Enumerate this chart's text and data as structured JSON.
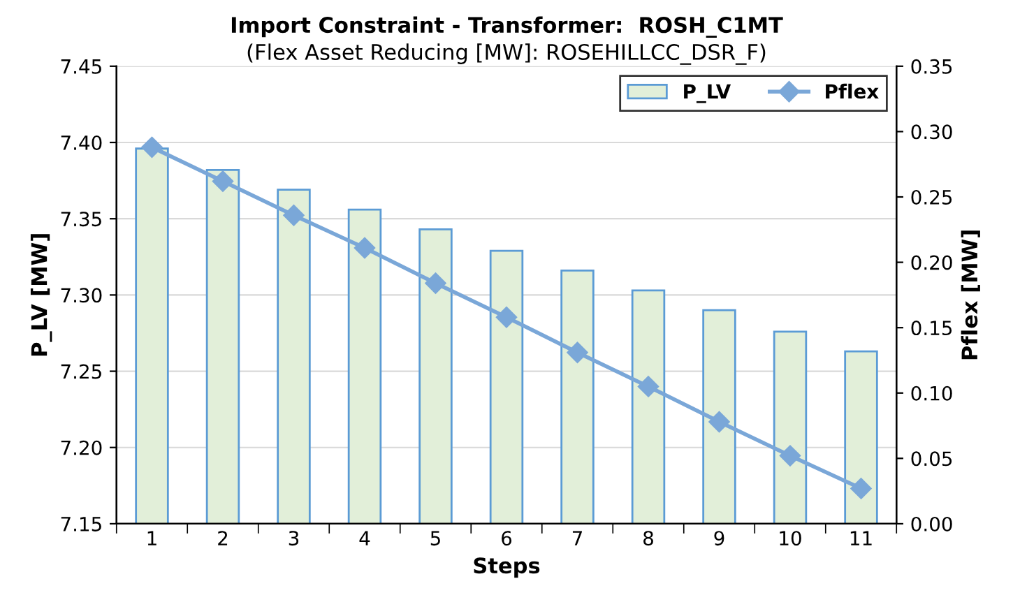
{
  "chart_data": {
    "type": "bar",
    "title": "Import Constraint - Transformer:  ROSH_C1MT",
    "subtitle": "(Flex Asset Reducing [MW]: ROSEHILLCC_DSR_F)",
    "xlabel": "Steps",
    "ylabel": "P_LV [MW]",
    "y2label": "Pflex [MW]",
    "categories": [
      "1",
      "2",
      "3",
      "4",
      "5",
      "6",
      "7",
      "8",
      "9",
      "10",
      "11"
    ],
    "series": [
      {
        "name": "P_LV",
        "color": "#e2efd9",
        "values": [
          7.396,
          7.382,
          7.369,
          7.356,
          7.343,
          7.329,
          7.316,
          7.303,
          7.29,
          7.276,
          7.263
        ]
      },
      {
        "name": "Pflex",
        "type": "line",
        "axis": "y2",
        "color": "#7aa7d8",
        "marker": "diamond",
        "values": [
          0.288,
          0.262,
          0.236,
          0.211,
          0.184,
          0.158,
          0.131,
          0.105,
          0.078,
          0.052,
          0.027
        ]
      }
    ],
    "ylim": [
      7.15,
      7.45
    ],
    "yticks": [
      {
        "value": 7.15,
        "label": "7.15"
      },
      {
        "value": 7.2,
        "label": "7.20"
      },
      {
        "value": 7.25,
        "label": "7.25"
      },
      {
        "value": 7.3,
        "label": "7.30"
      },
      {
        "value": 7.35,
        "label": "7.35"
      },
      {
        "value": 7.4,
        "label": "7.40"
      },
      {
        "value": 7.45,
        "label": "7.45"
      }
    ],
    "y2lim": [
      0,
      0.35
    ],
    "y2ticks": [
      {
        "value": 0,
        "label": "0.00"
      },
      {
        "value": 0.05,
        "label": "0.05"
      },
      {
        "value": 0.1,
        "label": "0.10"
      },
      {
        "value": 0.15,
        "label": "0.15"
      },
      {
        "value": 0.2,
        "label": "0.20"
      },
      {
        "value": 0.25,
        "label": "0.25"
      },
      {
        "value": 0.3,
        "label": "0.30"
      },
      {
        "value": 0.35,
        "label": "0.35"
      }
    ],
    "grid": "y",
    "legend": "top right"
  }
}
